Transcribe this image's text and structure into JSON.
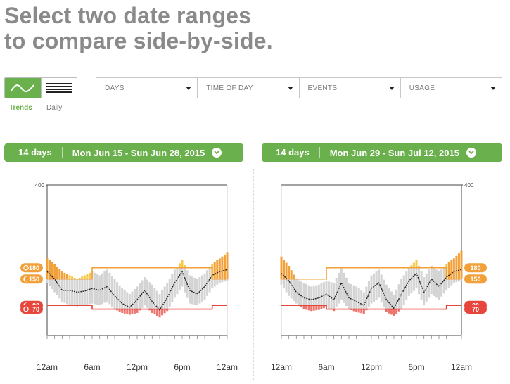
{
  "headline": {
    "line1": "Select two date ranges",
    "line2": "to compare side-by-side."
  },
  "view_toggle": {
    "trends_label": "Trends",
    "daily_label": "Daily",
    "active": "Trends"
  },
  "filters": [
    {
      "label": "DAYS"
    },
    {
      "label": "TIME OF DAY"
    },
    {
      "label": "EVENTS"
    },
    {
      "label": "USAGE"
    }
  ],
  "colors": {
    "accent_green": "#6ab04c",
    "high_orange": "#f2a13a",
    "high_yellow": "#f7c948",
    "low_red": "#e8453c",
    "range_band_gray": "#d4d4d4",
    "median_line": "#222222"
  },
  "ranges": [
    {
      "days": "14 days",
      "dates": "Mon Jun 15 - Sun Jun 28, 2015"
    },
    {
      "days": "14 days",
      "dates": "Mon Jun 29 - Sun Jul 12, 2015"
    }
  ],
  "chart_data": [
    {
      "type": "area",
      "title": "",
      "xlabel": "",
      "ylabel": "",
      "ylim": [
        0,
        400
      ],
      "y_tick_labels": [
        "400"
      ],
      "x_tick_labels": [
        "12am",
        "6am",
        "12pm",
        "6pm",
        "12am"
      ],
      "x_hours": [
        0,
        6,
        12,
        18,
        24
      ],
      "thresholds": [
        {
          "label": "180",
          "icon": "sun-icon",
          "color": "#f2a13a",
          "kind": "high"
        },
        {
          "label": "150",
          "icon": "moon-icon",
          "color": "#f2a13a",
          "kind": "high"
        },
        {
          "label": "80",
          "icon": "moon-icon",
          "color": "#e8453c",
          "kind": "low"
        },
        {
          "label": "70",
          "icon": "sun-icon",
          "color": "#e8453c",
          "kind": "low"
        }
      ],
      "high_target": {
        "segments": [
          {
            "from": 0,
            "to": 6,
            "value": 150
          },
          {
            "from": 6,
            "to": 22,
            "value": 180
          },
          {
            "from": 22,
            "to": 24,
            "value": 150
          }
        ]
      },
      "low_target": {
        "segments": [
          {
            "from": 0,
            "to": 6,
            "value": 80
          },
          {
            "from": 6,
            "to": 22,
            "value": 70
          },
          {
            "from": 22,
            "to": 24,
            "value": 80
          }
        ]
      },
      "series": [
        {
          "x": [
            0,
            1,
            2,
            3,
            4,
            5,
            6,
            7,
            8,
            9,
            10,
            11,
            12,
            13,
            14,
            15,
            16,
            17,
            18,
            19,
            20,
            21,
            22,
            23,
            24
          ],
          "median": [
            170,
            150,
            120,
            120,
            115,
            118,
            125,
            120,
            130,
            105,
            85,
            75,
            95,
            120,
            90,
            68,
            100,
            140,
            170,
            120,
            110,
            130,
            160,
            170,
            175
          ],
          "upper": [
            205,
            190,
            170,
            160,
            150,
            160,
            170,
            160,
            175,
            150,
            125,
            110,
            130,
            155,
            135,
            110,
            140,
            175,
            200,
            160,
            150,
            165,
            190,
            205,
            220
          ],
          "lower": [
            140,
            115,
            90,
            80,
            78,
            80,
            85,
            80,
            90,
            70,
            60,
            55,
            60,
            80,
            60,
            48,
            65,
            100,
            130,
            85,
            80,
            95,
            125,
            140,
            145
          ]
        }
      ]
    },
    {
      "type": "area",
      "title": "",
      "xlabel": "",
      "ylabel": "",
      "ylim": [
        0,
        400
      ],
      "y_tick_labels": [
        "400"
      ],
      "x_tick_labels": [
        "12am",
        "6am",
        "12pm",
        "6pm",
        "12am"
      ],
      "x_hours": [
        0,
        6,
        12,
        18,
        24
      ],
      "thresholds": [
        {
          "label": "180",
          "icon": "",
          "color": "#f2a13a",
          "kind": "high"
        },
        {
          "label": "150",
          "icon": "",
          "color": "#f2a13a",
          "kind": "high"
        },
        {
          "label": "80",
          "icon": "",
          "color": "#e8453c",
          "kind": "low"
        },
        {
          "label": "70",
          "icon": "",
          "color": "#e8453c",
          "kind": "low"
        }
      ],
      "high_target": {
        "segments": [
          {
            "from": 0,
            "to": 6,
            "value": 150
          },
          {
            "from": 6,
            "to": 22,
            "value": 180
          },
          {
            "from": 22,
            "to": 24,
            "value": 150
          }
        ]
      },
      "low_target": {
        "segments": [
          {
            "from": 0,
            "to": 6,
            "value": 80
          },
          {
            "from": 6,
            "to": 22,
            "value": 70
          },
          {
            "from": 22,
            "to": 24,
            "value": 80
          }
        ]
      },
      "series": [
        {
          "x": [
            0,
            1,
            2,
            3,
            4,
            5,
            6,
            7,
            8,
            9,
            10,
            11,
            12,
            13,
            14,
            15,
            16,
            17,
            18,
            19,
            20,
            21,
            22,
            23,
            24
          ],
          "median": [
            165,
            145,
            115,
            100,
            95,
            100,
            110,
            95,
            140,
            100,
            90,
            80,
            125,
            140,
            95,
            72,
            110,
            145,
            165,
            115,
            150,
            130,
            155,
            170,
            175
          ],
          "upper": [
            210,
            185,
            150,
            140,
            130,
            135,
            145,
            140,
            180,
            140,
            130,
            115,
            160,
            175,
            135,
            108,
            150,
            180,
            200,
            155,
            185,
            170,
            190,
            205,
            225
          ],
          "lower": [
            135,
            105,
            85,
            70,
            65,
            68,
            75,
            65,
            95,
            70,
            62,
            58,
            85,
            100,
            62,
            52,
            70,
            105,
            125,
            80,
            110,
            95,
            120,
            140,
            145
          ]
        }
      ]
    }
  ]
}
